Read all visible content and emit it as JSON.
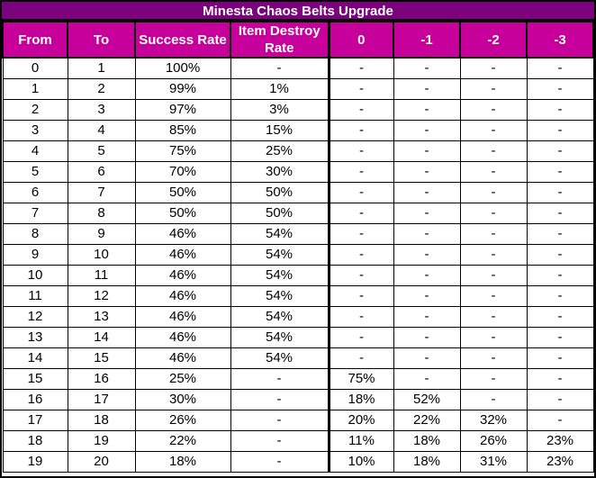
{
  "title": "Minesta Chaos Belts Upgrade",
  "colors": {
    "title_bg": "#7C017C",
    "header_bg": "#C7009B",
    "header_text": "#FFFFFF",
    "body_bg": "#FFFFFF",
    "body_text": "#000000",
    "border": "#000000"
  },
  "chart_data": {
    "type": "table",
    "title": "Minesta Chaos Belts Upgrade",
    "columns": [
      "From",
      "To",
      "Success Rate",
      "Item Destroy Rate",
      "0",
      "-1",
      "-2",
      "-3"
    ],
    "rows": [
      [
        "0",
        "1",
        "100%",
        "-",
        "-",
        "-",
        "-",
        "-"
      ],
      [
        "1",
        "2",
        "99%",
        "1%",
        "-",
        "-",
        "-",
        "-"
      ],
      [
        "2",
        "3",
        "97%",
        "3%",
        "-",
        "-",
        "-",
        "-"
      ],
      [
        "3",
        "4",
        "85%",
        "15%",
        "-",
        "-",
        "-",
        "-"
      ],
      [
        "4",
        "5",
        "75%",
        "25%",
        "-",
        "-",
        "-",
        "-"
      ],
      [
        "5",
        "6",
        "70%",
        "30%",
        "-",
        "-",
        "-",
        "-"
      ],
      [
        "6",
        "7",
        "50%",
        "50%",
        "-",
        "-",
        "-",
        "-"
      ],
      [
        "7",
        "8",
        "50%",
        "50%",
        "-",
        "-",
        "-",
        "-"
      ],
      [
        "8",
        "9",
        "46%",
        "54%",
        "-",
        "-",
        "-",
        "-"
      ],
      [
        "9",
        "10",
        "46%",
        "54%",
        "-",
        "-",
        "-",
        "-"
      ],
      [
        "10",
        "11",
        "46%",
        "54%",
        "-",
        "-",
        "-",
        "-"
      ],
      [
        "11",
        "12",
        "46%",
        "54%",
        "-",
        "-",
        "-",
        "-"
      ],
      [
        "12",
        "13",
        "46%",
        "54%",
        "-",
        "-",
        "-",
        "-"
      ],
      [
        "13",
        "14",
        "46%",
        "54%",
        "-",
        "-",
        "-",
        "-"
      ],
      [
        "14",
        "15",
        "46%",
        "54%",
        "-",
        "-",
        "-",
        "-"
      ],
      [
        "15",
        "16",
        "25%",
        "-",
        "75%",
        "-",
        "-",
        "-"
      ],
      [
        "16",
        "17",
        "30%",
        "-",
        "18%",
        "52%",
        "-",
        "-"
      ],
      [
        "17",
        "18",
        "26%",
        "-",
        "20%",
        "22%",
        "32%",
        "-"
      ],
      [
        "18",
        "19",
        "22%",
        "-",
        "11%",
        "18%",
        "26%",
        "23%"
      ],
      [
        "19",
        "20",
        "18%",
        "-",
        "10%",
        "18%",
        "31%",
        "23%"
      ]
    ]
  }
}
